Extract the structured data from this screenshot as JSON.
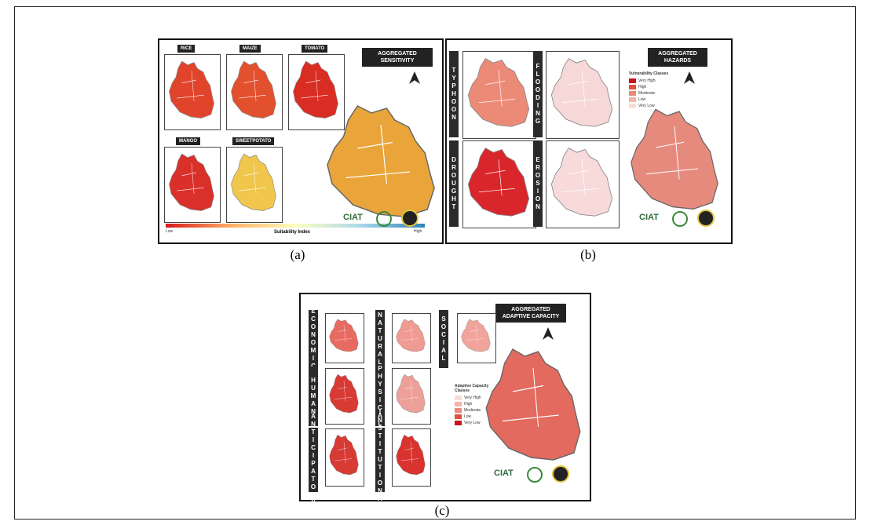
{
  "panels": [
    {
      "label": "(a)",
      "title": "AGGREGATED SENSITIVITY",
      "maps": [
        "RICE",
        "MAIZE",
        "TOMATO",
        "MANGO",
        "SWEETPOTATO"
      ],
      "legend": {
        "title": "Suitability Index",
        "low": "Low",
        "high": "High"
      },
      "logo": "CIAT"
    },
    {
      "label": "(b)",
      "title": "AGGREGATED HAZARDS",
      "maps": [
        "TYPHOON",
        "FLOODING",
        "DROUGHT",
        "EROSION"
      ],
      "legend": {
        "title": "Vulnerability Classes",
        "classes": [
          "Very High",
          "High",
          "Moderate",
          "Low",
          "Very Low"
        ]
      },
      "logo": "CIAT"
    },
    {
      "label": "(c)",
      "title": "AGGREGATED ADAPTIVE CAPACITY",
      "maps": [
        "ECONOMIC",
        "NATURAL",
        "SOCIAL",
        "HUMAN",
        "PHYSICAL",
        "ANTICIPATORY",
        "INSTITUTIONAL"
      ],
      "legend": {
        "title": "Adaptive Capacity Classes",
        "classes": [
          "Very High",
          "High",
          "Moderate",
          "Low",
          "Very Low"
        ]
      },
      "logo": "CIAT"
    }
  ]
}
